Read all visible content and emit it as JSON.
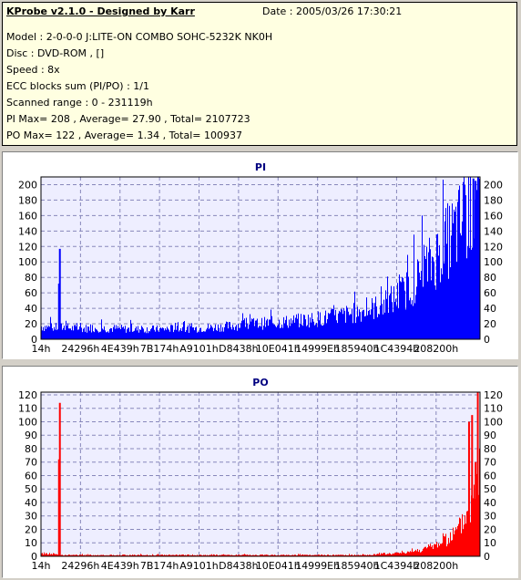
{
  "header": {
    "app_title": "KProbe v2.1.0 - Designed by Karr",
    "date": "Date : 2005/03/26 17:30:21",
    "model": "Model : 2-0-0-0 J:LITE-ON COMBO SOHC-5232K NK0H",
    "disc": "Disc : DVD-ROM ,  []",
    "speed": "Speed : 8x",
    "ecc": "ECC blocks sum (PI/PO) : 1/1",
    "range": "Scanned range : 0 - 231119h",
    "pi_summary": "PI Max= 208 , Average= 27.90 , Total= 2107723",
    "po_summary": "PO Max= 122 , Average= 1.34 , Total= 100937"
  },
  "chart_data": [
    {
      "type": "bar",
      "title": "PI",
      "color": "#0000ff",
      "xlabel": "",
      "ylabel": "",
      "ylim": [
        0,
        210
      ],
      "yticks": [
        0,
        20,
        40,
        60,
        80,
        100,
        120,
        140,
        160,
        180,
        200
      ],
      "grid": true,
      "xticks": [
        "14h",
        "24296h",
        "4E439h",
        "7B174h",
        "A9101h",
        "D8438h",
        "10E041h",
        "14999Eh",
        "185940h",
        "1C4394h",
        "208200h"
      ],
      "series": [
        {
          "x": [
            0.0,
            0.025,
            0.05,
            0.075,
            0.1,
            0.125,
            0.15,
            0.175,
            0.2,
            0.225,
            0.25,
            0.275,
            0.3,
            0.325,
            0.35,
            0.375,
            0.4,
            0.425,
            0.45,
            0.475,
            0.5,
            0.525,
            0.55,
            0.575,
            0.6,
            0.625,
            0.65,
            0.675,
            0.7,
            0.725,
            0.75,
            0.775,
            0.8,
            0.825,
            0.85,
            0.875,
            0.9,
            0.925,
            0.95,
            0.975,
            1.0
          ],
          "values": [
            18,
            16,
            17,
            15,
            15,
            16,
            15,
            15,
            14,
            14,
            14,
            14,
            15,
            15,
            15,
            16,
            17,
            18,
            20,
            21,
            22,
            23,
            24,
            25,
            27,
            28,
            30,
            32,
            35,
            38,
            42,
            47,
            55,
            65,
            78,
            95,
            115,
            135,
            155,
            178,
            200
          ]
        }
      ],
      "spikes": [
        {
          "x": 0.043,
          "value": 117
        },
        {
          "x": 0.041,
          "value": 72
        },
        {
          "x": 0.985,
          "value": 208
        },
        {
          "x": 0.99,
          "value": 205
        }
      ]
    },
    {
      "type": "bar",
      "title": "PO",
      "color": "#ff0000",
      "xlabel": "",
      "ylabel": "",
      "ylim": [
        0,
        122
      ],
      "yticks": [
        0,
        10,
        20,
        30,
        40,
        50,
        60,
        70,
        80,
        90,
        100,
        110,
        120
      ],
      "grid": true,
      "xticks": [
        "14h",
        "24296h",
        "4E439h",
        "7B174h",
        "A9101h",
        "D8438h",
        "10E041h",
        "14999Eh",
        "185940h",
        "1C4394h",
        "208200h"
      ],
      "series": [
        {
          "x": [
            0.0,
            0.025,
            0.05,
            0.075,
            0.1,
            0.125,
            0.15,
            0.175,
            0.2,
            0.225,
            0.25,
            0.275,
            0.3,
            0.325,
            0.35,
            0.375,
            0.4,
            0.425,
            0.45,
            0.475,
            0.5,
            0.525,
            0.55,
            0.575,
            0.6,
            0.625,
            0.65,
            0.675,
            0.7,
            0.725,
            0.75,
            0.775,
            0.8,
            0.825,
            0.85,
            0.875,
            0.9,
            0.925,
            0.95,
            0.975,
            1.0
          ],
          "values": [
            2,
            2,
            1,
            1,
            1,
            1,
            1,
            1,
            1,
            1,
            1,
            1,
            1,
            1,
            1,
            1,
            1,
            1,
            1,
            1,
            1,
            1,
            1,
            1,
            1,
            1,
            1,
            1,
            1,
            1,
            1,
            2,
            2,
            3,
            4,
            6,
            9,
            13,
            20,
            35,
            60
          ]
        }
      ],
      "spikes": [
        {
          "x": 0.043,
          "value": 114
        },
        {
          "x": 0.041,
          "value": 72
        },
        {
          "x": 0.975,
          "value": 100
        },
        {
          "x": 0.982,
          "value": 105
        },
        {
          "x": 0.995,
          "value": 122
        },
        {
          "x": 0.99,
          "value": 70
        }
      ]
    }
  ]
}
